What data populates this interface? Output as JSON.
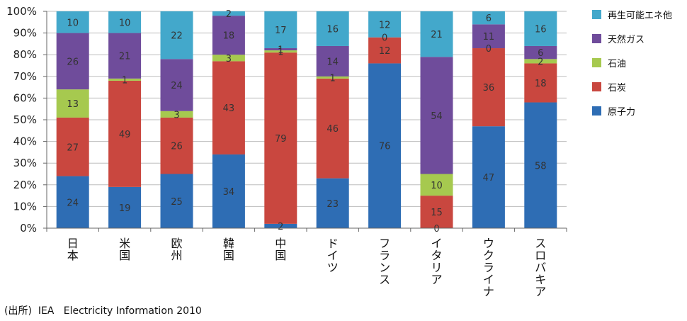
{
  "chart_data": {
    "type": "bar",
    "stacked": true,
    "title": "",
    "xlabel": "",
    "ylabel": "",
    "ylim": [
      0,
      100
    ],
    "yticks": [
      "0%",
      "10%",
      "20%",
      "30%",
      "40%",
      "50%",
      "60%",
      "70%",
      "80%",
      "90%",
      "100%"
    ],
    "grid": true,
    "legend_position": "right",
    "categories": [
      "日本",
      "米国",
      "欧州",
      "韓国",
      "中国",
      "ドイツ",
      "フランス",
      "イタリア",
      "ウクライナ",
      "スロバキア"
    ],
    "series": [
      {
        "name": "原子力",
        "color": "#2e6db4",
        "values": [
          24,
          19,
          25,
          34,
          2,
          23,
          76,
          0,
          47,
          58
        ]
      },
      {
        "name": "石炭",
        "color": "#c9473f",
        "values": [
          27,
          49,
          26,
          43,
          79,
          46,
          12,
          15,
          36,
          18
        ]
      },
      {
        "name": "石油",
        "color": "#a6c94f",
        "values": [
          13,
          1,
          3,
          3,
          1,
          1,
          0,
          10,
          0,
          2
        ]
      },
      {
        "name": "天然ガス",
        "color": "#6f4c9b",
        "values": [
          26,
          21,
          24,
          18,
          1,
          14,
          0,
          54,
          11,
          6
        ]
      },
      {
        "name": "再生可能エネ他",
        "color": "#43a8cb",
        "values": [
          10,
          10,
          22,
          2,
          17,
          16,
          12,
          21,
          6,
          16
        ]
      }
    ],
    "data_labels": [
      [
        "24",
        "19",
        "25",
        "34",
        "2",
        "23",
        "76",
        "0",
        "47",
        "58"
      ],
      [
        "27",
        "49",
        "26",
        "43",
        "79",
        "46",
        "12",
        "15",
        "36",
        "18"
      ],
      [
        "13",
        "1",
        "3",
        "3",
        "1",
        "1",
        "",
        "10",
        "0",
        "2"
      ],
      [
        "26",
        "21",
        "24",
        "18",
        "1",
        "14",
        "0",
        "54",
        "11",
        "6"
      ],
      [
        "10",
        "10",
        "22",
        "2",
        "17",
        "16",
        "12",
        "21",
        "6",
        "16"
      ]
    ],
    "legend_order": [
      "再生可能エネ他",
      "天然ガス",
      "石油",
      "石炭",
      "原子力"
    ]
  },
  "source": "(出所)  IEA   Electricity Information 2010"
}
